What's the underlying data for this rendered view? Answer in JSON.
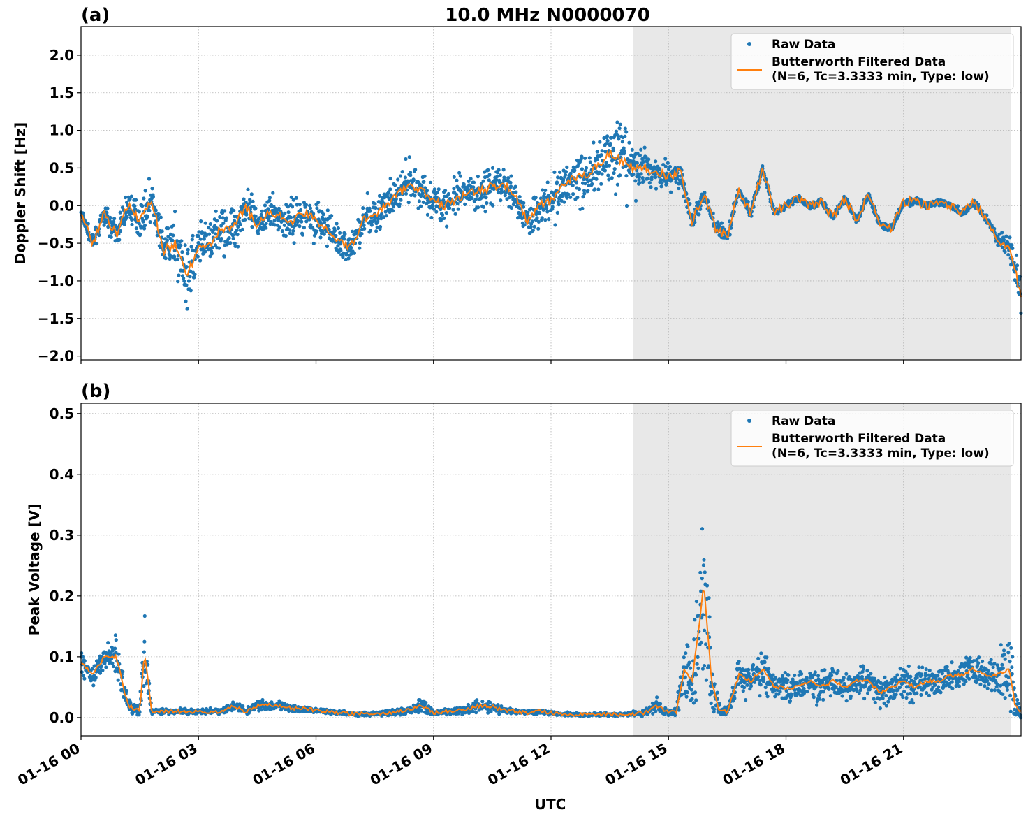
{
  "figure": {
    "title": "10.0 MHz N0000070",
    "xlabel": "UTC",
    "x_ticks": [
      "01-16 00",
      "01-16 03",
      "01-16 06",
      "01-16 09",
      "01-16 12",
      "01-16 15",
      "01-16 18",
      "01-16 21"
    ]
  },
  "colors": {
    "raw": "#1f77b4",
    "filtered": "#ff7f0e",
    "shade": "#e8e8e8",
    "grid": "#b0b0b0"
  },
  "chart_data": [
    {
      "type": "scatter",
      "panel_label": "(a)",
      "ylabel": "Doppler Shift [Hz]",
      "xlim_hours": [
        0,
        24
      ],
      "ylim": [
        -2.05,
        2.38
      ],
      "y_ticks": [
        "2.0",
        "1.5",
        "1.0",
        "0.5",
        "0.0",
        "−0.5",
        "−1.0",
        "−1.5",
        "−2.0"
      ],
      "y_tick_values": [
        2.0,
        1.5,
        1.0,
        0.5,
        0.0,
        -0.5,
        -1.0,
        -1.5,
        -2.0
      ],
      "grid": true,
      "legend_position": "top-right",
      "shaded_span_hours": [
        14.1,
        23.75
      ],
      "series": [
        {
          "name": "Raw Data",
          "kind": "scatter",
          "x_hours": [
            0.0,
            0.3,
            0.6,
            0.9,
            1.2,
            1.5,
            1.8,
            2.1,
            2.4,
            2.7,
            3.0,
            3.3,
            3.6,
            3.9,
            4.2,
            4.5,
            4.8,
            5.1,
            5.4,
            5.7,
            6.0,
            6.3,
            6.6,
            6.9,
            7.2,
            7.5,
            7.8,
            8.1,
            8.4,
            8.7,
            9.0,
            9.3,
            9.6,
            9.9,
            10.2,
            10.5,
            10.8,
            11.1,
            11.4,
            11.7,
            12.0,
            12.3,
            12.6,
            12.9,
            13.2,
            13.5,
            13.8,
            14.1,
            14.4,
            14.7,
            15.0,
            15.3,
            15.6,
            15.9,
            16.2,
            16.5,
            16.8,
            17.1,
            17.4,
            17.7,
            18.0,
            18.3,
            18.6,
            18.9,
            19.2,
            19.5,
            19.8,
            20.1,
            20.4,
            20.7,
            21.0,
            21.3,
            21.6,
            21.9,
            22.2,
            22.5,
            22.8,
            23.1,
            23.4,
            23.7,
            24.0
          ],
          "center": [
            -0.1,
            -0.5,
            -0.1,
            -0.4,
            0.0,
            -0.2,
            0.1,
            -0.6,
            -0.5,
            -0.9,
            -0.6,
            -0.5,
            -0.3,
            -0.3,
            0.0,
            -0.25,
            -0.1,
            -0.15,
            -0.2,
            -0.1,
            -0.2,
            -0.3,
            -0.5,
            -0.55,
            -0.2,
            -0.1,
            0.0,
            0.15,
            0.3,
            0.2,
            0.05,
            0.0,
            0.1,
            0.15,
            0.2,
            0.25,
            0.3,
            0.1,
            -0.2,
            0.0,
            0.05,
            0.3,
            0.35,
            0.4,
            0.55,
            0.7,
            0.6,
            0.5,
            0.5,
            0.45,
            0.4,
            0.45,
            -0.2,
            0.15,
            -0.3,
            -0.4,
            0.2,
            -0.1,
            0.5,
            -0.1,
            0.0,
            0.1,
            0.0,
            0.05,
            -0.15,
            0.1,
            -0.2,
            0.15,
            -0.25,
            -0.3,
            0.05,
            0.05,
            0.0,
            0.05,
            0.0,
            -0.1,
            0.05,
            -0.15,
            -0.45,
            -0.55,
            -1.2
          ],
          "spread": [
            0.1,
            0.1,
            0.15,
            0.2,
            0.25,
            0.25,
            0.3,
            0.35,
            0.45,
            0.5,
            0.45,
            0.4,
            0.4,
            0.35,
            0.35,
            0.3,
            0.3,
            0.3,
            0.3,
            0.3,
            0.3,
            0.3,
            0.3,
            0.3,
            0.3,
            0.3,
            0.3,
            0.3,
            0.3,
            0.3,
            0.3,
            0.3,
            0.3,
            0.3,
            0.3,
            0.3,
            0.3,
            0.3,
            0.3,
            0.3,
            0.35,
            0.4,
            0.45,
            0.5,
            0.55,
            0.6,
            0.55,
            0.45,
            0.3,
            0.25,
            0.25,
            0.2,
            0.15,
            0.1,
            0.1,
            0.15,
            0.08,
            0.08,
            0.06,
            0.06,
            0.06,
            0.06,
            0.06,
            0.06,
            0.06,
            0.06,
            0.06,
            0.06,
            0.06,
            0.06,
            0.06,
            0.06,
            0.06,
            0.06,
            0.06,
            0.06,
            0.06,
            0.06,
            0.1,
            0.2,
            0.35
          ]
        },
        {
          "name": "Butterworth Filtered Data\n(N=6, Tc=3.3333 min, Type: low)",
          "name_lines": [
            "Butterworth Filtered Data",
            "(N=6, Tc=3.3333 min, Type: low)"
          ],
          "kind": "line",
          "x_hours": [
            0.0,
            0.3,
            0.6,
            0.9,
            1.2,
            1.5,
            1.8,
            2.1,
            2.4,
            2.7,
            3.0,
            3.3,
            3.6,
            3.9,
            4.2,
            4.5,
            4.8,
            5.1,
            5.4,
            5.7,
            6.0,
            6.3,
            6.6,
            6.9,
            7.2,
            7.5,
            7.8,
            8.1,
            8.4,
            8.7,
            9.0,
            9.3,
            9.6,
            9.9,
            10.2,
            10.5,
            10.8,
            11.1,
            11.4,
            11.7,
            12.0,
            12.3,
            12.6,
            12.9,
            13.2,
            13.5,
            13.8,
            14.1,
            14.4,
            14.7,
            15.0,
            15.3,
            15.6,
            15.9,
            16.2,
            16.5,
            16.8,
            17.1,
            17.4,
            17.7,
            18.0,
            18.3,
            18.6,
            18.9,
            19.2,
            19.5,
            19.8,
            20.1,
            20.4,
            20.7,
            21.0,
            21.3,
            21.6,
            21.9,
            22.2,
            22.5,
            22.8,
            23.1,
            23.4,
            23.7,
            24.0
          ],
          "y": [
            -0.1,
            -0.5,
            -0.1,
            -0.4,
            0.0,
            -0.2,
            0.1,
            -0.6,
            -0.5,
            -0.9,
            -0.6,
            -0.5,
            -0.3,
            -0.3,
            0.0,
            -0.25,
            -0.1,
            -0.15,
            -0.2,
            -0.1,
            -0.2,
            -0.3,
            -0.5,
            -0.55,
            -0.2,
            -0.1,
            0.0,
            0.15,
            0.3,
            0.2,
            0.05,
            0.0,
            0.1,
            0.15,
            0.2,
            0.25,
            0.3,
            0.1,
            -0.2,
            0.0,
            0.05,
            0.3,
            0.35,
            0.4,
            0.55,
            0.7,
            0.6,
            0.5,
            0.5,
            0.45,
            0.4,
            0.45,
            -0.2,
            0.15,
            -0.3,
            -0.4,
            0.2,
            -0.1,
            0.5,
            -0.1,
            0.0,
            0.1,
            0.0,
            0.05,
            -0.15,
            0.1,
            -0.2,
            0.15,
            -0.25,
            -0.3,
            0.05,
            0.05,
            0.0,
            0.05,
            0.0,
            -0.1,
            0.05,
            -0.15,
            -0.45,
            -0.55,
            -1.2
          ]
        }
      ]
    },
    {
      "type": "scatter",
      "panel_label": "(b)",
      "ylabel": "Peak Voltage [V]",
      "xlim_hours": [
        0,
        24
      ],
      "ylim": [
        -0.03,
        0.517
      ],
      "y_ticks": [
        "0.5",
        "0.4",
        "0.3",
        "0.2",
        "0.1",
        "0.0"
      ],
      "y_tick_values": [
        0.5,
        0.4,
        0.3,
        0.2,
        0.1,
        0.0
      ],
      "grid": true,
      "legend_position": "top-right",
      "shaded_span_hours": [
        14.1,
        23.75
      ],
      "series": [
        {
          "name": "Raw Data",
          "kind": "scatter",
          "x_hours": [
            0.0,
            0.3,
            0.6,
            0.9,
            1.2,
            1.5,
            1.62,
            1.8,
            2.1,
            2.4,
            2.7,
            3.0,
            3.3,
            3.6,
            3.9,
            4.2,
            4.5,
            4.8,
            5.1,
            5.4,
            5.7,
            6.0,
            6.3,
            6.6,
            6.9,
            7.2,
            7.5,
            7.8,
            8.1,
            8.4,
            8.7,
            9.0,
            9.3,
            9.6,
            9.9,
            10.2,
            10.5,
            10.8,
            11.1,
            11.4,
            11.7,
            12.0,
            12.3,
            12.6,
            12.9,
            13.2,
            13.5,
            13.8,
            14.1,
            14.4,
            14.7,
            15.0,
            15.2,
            15.4,
            15.6,
            15.8,
            15.9,
            16.1,
            16.3,
            16.5,
            16.8,
            17.1,
            17.4,
            17.7,
            18.0,
            18.3,
            18.6,
            18.9,
            19.2,
            19.5,
            19.8,
            20.1,
            20.4,
            20.7,
            21.0,
            21.3,
            21.6,
            21.9,
            22.2,
            22.5,
            22.8,
            23.1,
            23.4,
            23.7,
            23.85,
            24.0
          ],
          "center": [
            0.09,
            0.07,
            0.1,
            0.1,
            0.02,
            0.01,
            0.11,
            0.01,
            0.01,
            0.01,
            0.01,
            0.01,
            0.01,
            0.01,
            0.02,
            0.01,
            0.02,
            0.02,
            0.02,
            0.015,
            0.015,
            0.012,
            0.01,
            0.008,
            0.006,
            0.006,
            0.007,
            0.008,
            0.01,
            0.012,
            0.02,
            0.008,
            0.01,
            0.012,
            0.015,
            0.02,
            0.018,
            0.012,
            0.01,
            0.008,
            0.01,
            0.008,
            0.006,
            0.005,
            0.005,
            0.005,
            0.005,
            0.005,
            0.006,
            0.008,
            0.02,
            0.008,
            0.01,
            0.08,
            0.06,
            0.16,
            0.22,
            0.06,
            0.01,
            0.01,
            0.07,
            0.06,
            0.08,
            0.05,
            0.05,
            0.05,
            0.06,
            0.05,
            0.06,
            0.05,
            0.06,
            0.06,
            0.04,
            0.05,
            0.06,
            0.05,
            0.06,
            0.06,
            0.07,
            0.07,
            0.08,
            0.07,
            0.07,
            0.08,
            0.02,
            0.01
          ],
          "spread": [
            0.02,
            0.02,
            0.03,
            0.04,
            0.02,
            0.01,
            0.09,
            0.005,
            0.005,
            0.005,
            0.005,
            0.005,
            0.005,
            0.006,
            0.01,
            0.006,
            0.01,
            0.01,
            0.008,
            0.006,
            0.006,
            0.005,
            0.005,
            0.004,
            0.004,
            0.004,
            0.004,
            0.005,
            0.006,
            0.008,
            0.02,
            0.005,
            0.006,
            0.008,
            0.01,
            0.012,
            0.01,
            0.006,
            0.005,
            0.004,
            0.005,
            0.004,
            0.003,
            0.003,
            0.003,
            0.003,
            0.003,
            0.003,
            0.004,
            0.006,
            0.015,
            0.005,
            0.01,
            0.06,
            0.06,
            0.15,
            0.25,
            0.06,
            0.01,
            0.01,
            0.04,
            0.03,
            0.04,
            0.03,
            0.03,
            0.03,
            0.03,
            0.03,
            0.03,
            0.03,
            0.03,
            0.03,
            0.03,
            0.03,
            0.03,
            0.03,
            0.03,
            0.03,
            0.03,
            0.03,
            0.04,
            0.04,
            0.04,
            0.1,
            0.03,
            0.01
          ]
        },
        {
          "name": "Butterworth Filtered Data\n(N=6, Tc=3.3333 min, Type: low)",
          "name_lines": [
            "Butterworth Filtered Data",
            "(N=6, Tc=3.3333 min, Type: low)"
          ],
          "kind": "line",
          "x_hours": [
            0.0,
            0.3,
            0.6,
            0.9,
            1.2,
            1.5,
            1.62,
            1.8,
            2.1,
            2.4,
            2.7,
            3.0,
            3.3,
            3.6,
            3.9,
            4.2,
            4.5,
            4.8,
            5.1,
            5.4,
            5.7,
            6.0,
            6.3,
            6.6,
            6.9,
            7.2,
            7.5,
            7.8,
            8.1,
            8.4,
            8.7,
            9.0,
            9.3,
            9.6,
            9.9,
            10.2,
            10.5,
            10.8,
            11.1,
            11.4,
            11.7,
            12.0,
            12.3,
            12.6,
            12.9,
            13.2,
            13.5,
            13.8,
            14.1,
            14.4,
            14.7,
            15.0,
            15.2,
            15.4,
            15.6,
            15.8,
            15.9,
            16.1,
            16.3,
            16.5,
            16.8,
            17.1,
            17.4,
            17.7,
            18.0,
            18.3,
            18.6,
            18.9,
            19.2,
            19.5,
            19.8,
            20.1,
            20.4,
            20.7,
            21.0,
            21.3,
            21.6,
            21.9,
            22.2,
            22.5,
            22.8,
            23.1,
            23.4,
            23.7,
            23.85,
            24.0
          ],
          "y": [
            0.09,
            0.07,
            0.1,
            0.1,
            0.02,
            0.01,
            0.11,
            0.01,
            0.01,
            0.01,
            0.01,
            0.01,
            0.01,
            0.01,
            0.02,
            0.01,
            0.02,
            0.02,
            0.02,
            0.015,
            0.015,
            0.012,
            0.01,
            0.008,
            0.006,
            0.006,
            0.007,
            0.008,
            0.01,
            0.012,
            0.02,
            0.008,
            0.01,
            0.012,
            0.015,
            0.02,
            0.018,
            0.012,
            0.01,
            0.008,
            0.01,
            0.008,
            0.006,
            0.005,
            0.005,
            0.005,
            0.005,
            0.005,
            0.006,
            0.008,
            0.02,
            0.008,
            0.01,
            0.08,
            0.06,
            0.16,
            0.22,
            0.06,
            0.01,
            0.01,
            0.07,
            0.06,
            0.08,
            0.05,
            0.05,
            0.05,
            0.06,
            0.05,
            0.06,
            0.05,
            0.06,
            0.06,
            0.04,
            0.05,
            0.06,
            0.05,
            0.06,
            0.06,
            0.07,
            0.07,
            0.08,
            0.07,
            0.07,
            0.08,
            0.02,
            0.01
          ]
        }
      ]
    }
  ]
}
